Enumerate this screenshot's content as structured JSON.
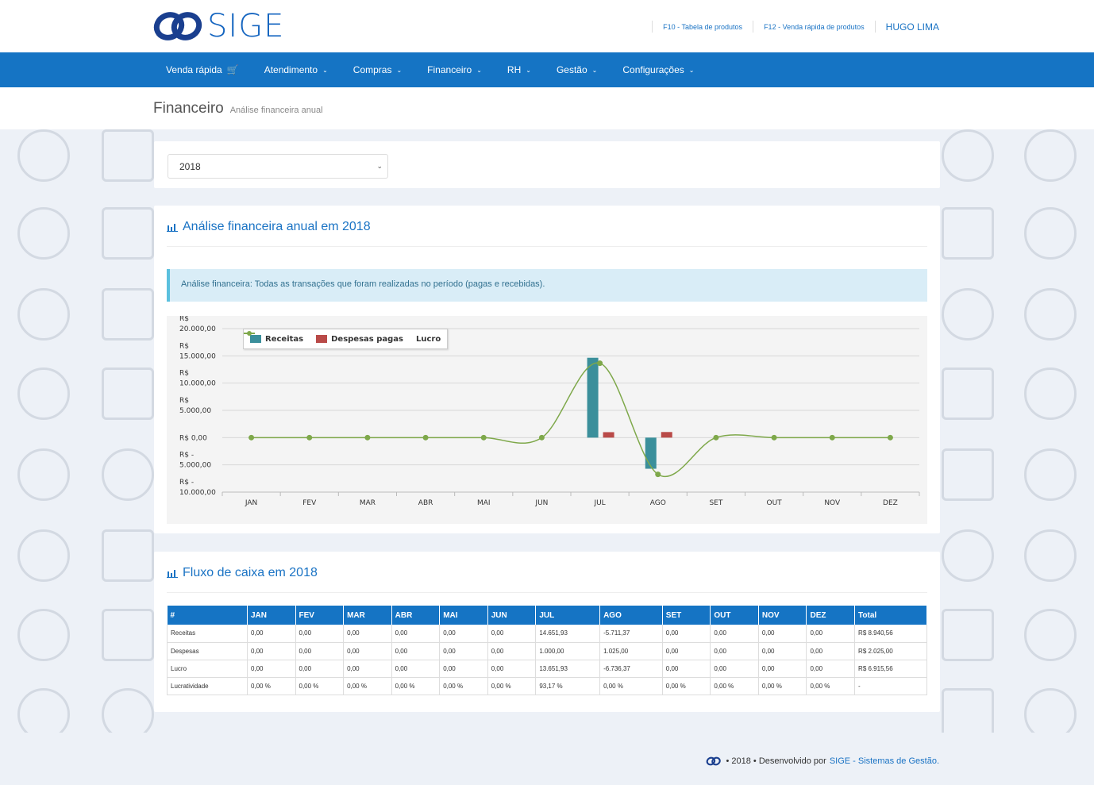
{
  "brand": {
    "name": "SIGE"
  },
  "top_links": {
    "f10": "F10 - Tabela de produtos",
    "f12": "F12 - Venda rápida de produtos",
    "user": "HUGO LIMA"
  },
  "nav": [
    {
      "label": "Venda rápida",
      "icon": "cart-icon"
    },
    {
      "label": "Atendimento",
      "icon": "chevron-down-icon"
    },
    {
      "label": "Compras",
      "icon": "chevron-down-icon"
    },
    {
      "label": "Financeiro",
      "icon": "chevron-down-icon"
    },
    {
      "label": "RH",
      "icon": "chevron-down-icon"
    },
    {
      "label": "Gestão",
      "icon": "chevron-down-icon"
    },
    {
      "label": "Configurações",
      "icon": "chevron-down-icon"
    }
  ],
  "page": {
    "title": "Financeiro",
    "subtitle": "Análise financeira anual"
  },
  "filter": {
    "year": "2018"
  },
  "analysis": {
    "title": "Análise financeira anual em 2018",
    "info": "Análise financeira: Todas as transações que foram realizadas no período (pagas e recebidas)."
  },
  "chart_data": {
    "type": "bar",
    "categories": [
      "JAN",
      "FEV",
      "MAR",
      "ABR",
      "MAI",
      "JUN",
      "JUL",
      "AGO",
      "SET",
      "OUT",
      "NOV",
      "DEZ"
    ],
    "series": [
      {
        "name": "Receitas",
        "type": "bar",
        "color": "#3b8f9b",
        "values": [
          0,
          0,
          0,
          0,
          0,
          0,
          14651.93,
          -5711.37,
          0,
          0,
          0,
          0
        ]
      },
      {
        "name": "Despesas pagas",
        "type": "bar",
        "color": "#b94a48",
        "values": [
          0,
          0,
          0,
          0,
          0,
          0,
          1000.0,
          1025.0,
          0,
          0,
          0,
          0
        ]
      },
      {
        "name": "Lucro",
        "type": "line",
        "color": "#7ea84a",
        "values": [
          0,
          0,
          0,
          0,
          0,
          0,
          13651.93,
          -6736.37,
          0,
          0,
          0,
          0
        ]
      }
    ],
    "y_ticks": [
      {
        "value": 20000,
        "label": [
          "R$",
          "20.000,00"
        ]
      },
      {
        "value": 15000,
        "label": [
          "R$",
          "15.000,00"
        ]
      },
      {
        "value": 10000,
        "label": [
          "R$",
          "10.000,00"
        ]
      },
      {
        "value": 5000,
        "label": [
          "R$",
          "5.000,00"
        ]
      },
      {
        "value": 0,
        "label": [
          "R$ 0,00"
        ]
      },
      {
        "value": -5000,
        "label": [
          "R$ -",
          "5.000,00"
        ]
      },
      {
        "value": -10000,
        "label": [
          "R$ -",
          "10.000,00"
        ]
      }
    ],
    "ylim": [
      -10000,
      20000
    ],
    "legend_position": "top-left",
    "grid": true
  },
  "cashflow": {
    "title": "Fluxo de caixa em 2018",
    "headers": [
      "#",
      "JAN",
      "FEV",
      "MAR",
      "ABR",
      "MAI",
      "JUN",
      "JUL",
      "AGO",
      "SET",
      "OUT",
      "NOV",
      "DEZ",
      "Total"
    ],
    "rows": [
      [
        "Receitas",
        "0,00",
        "0,00",
        "0,00",
        "0,00",
        "0,00",
        "0,00",
        "14.651,93",
        "-5.711,37",
        "0,00",
        "0,00",
        "0,00",
        "0,00",
        "R$ 8.940,56"
      ],
      [
        "Despesas",
        "0,00",
        "0,00",
        "0,00",
        "0,00",
        "0,00",
        "0,00",
        "1.000,00",
        "1.025,00",
        "0,00",
        "0,00",
        "0,00",
        "0,00",
        "R$ 2.025,00"
      ],
      [
        "Lucro",
        "0,00",
        "0,00",
        "0,00",
        "0,00",
        "0,00",
        "0,00",
        "13.651,93",
        "-6.736,37",
        "0,00",
        "0,00",
        "0,00",
        "0,00",
        "R$ 6.915,56"
      ],
      [
        "Lucratividade",
        "0,00 %",
        "0,00 %",
        "0,00 %",
        "0,00 %",
        "0,00 %",
        "0,00 %",
        "93,17 %",
        "0,00 %",
        "0,00 %",
        "0,00 %",
        "0,00 %",
        "0,00 %",
        "-"
      ]
    ]
  },
  "footer": {
    "year_text": "• 2018 • Desenvolvido por",
    "link": "SIGE - Sistemas de Gestão."
  }
}
